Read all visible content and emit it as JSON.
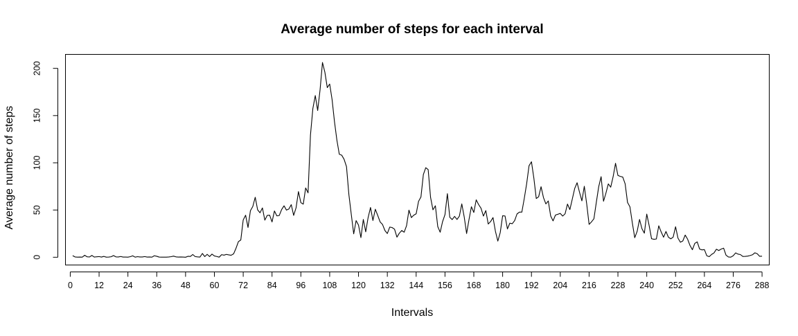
{
  "chart_data": {
    "type": "line",
    "title": "Average number of steps for each interval",
    "xlabel": "Intervals",
    "ylabel": "Average number of steps",
    "xlim": [
      -2,
      291
    ],
    "ylim": [
      -8.2,
      214.8
    ],
    "x_ticks": [
      0,
      12,
      24,
      36,
      48,
      60,
      72,
      84,
      96,
      108,
      120,
      132,
      144,
      156,
      168,
      180,
      192,
      204,
      216,
      228,
      240,
      252,
      264,
      276,
      288
    ],
    "y_ticks": [
      0,
      50,
      100,
      150,
      200
    ],
    "grid": false,
    "legend": "none",
    "series": [
      {
        "color": "#000000",
        "x": [
          1,
          2,
          3,
          4,
          5,
          6,
          7,
          8,
          9,
          10,
          11,
          12,
          13,
          14,
          15,
          16,
          17,
          18,
          19,
          20,
          21,
          22,
          23,
          24,
          25,
          26,
          27,
          28,
          29,
          30,
          31,
          32,
          33,
          34,
          35,
          36,
          37,
          38,
          39,
          40,
          41,
          42,
          43,
          44,
          45,
          46,
          47,
          48,
          49,
          50,
          51,
          52,
          53,
          54,
          55,
          56,
          57,
          58,
          59,
          60,
          61,
          62,
          63,
          64,
          65,
          66,
          67,
          68,
          69,
          70,
          71,
          72,
          73,
          74,
          75,
          76,
          77,
          78,
          79,
          80,
          81,
          82,
          83,
          84,
          85,
          86,
          87,
          88,
          89,
          90,
          91,
          92,
          93,
          94,
          95,
          96,
          97,
          98,
          99,
          100,
          101,
          102,
          103,
          104,
          105,
          106,
          107,
          108,
          109,
          110,
          111,
          112,
          113,
          114,
          115,
          116,
          117,
          118,
          119,
          120,
          121,
          122,
          123,
          124,
          125,
          126,
          127,
          128,
          129,
          130,
          131,
          132,
          133,
          134,
          135,
          136,
          137,
          138,
          139,
          140,
          141,
          142,
          143,
          144,
          145,
          146,
          147,
          148,
          149,
          150,
          151,
          152,
          153,
          154,
          155,
          156,
          157,
          158,
          159,
          160,
          161,
          162,
          163,
          164,
          165,
          166,
          167,
          168,
          169,
          170,
          171,
          172,
          173,
          174,
          175,
          176,
          177,
          178,
          179,
          180,
          181,
          182,
          183,
          184,
          185,
          186,
          187,
          188,
          189,
          190,
          191,
          192,
          193,
          194,
          195,
          196,
          197,
          198,
          199,
          200,
          201,
          202,
          203,
          204,
          205,
          206,
          207,
          208,
          209,
          210,
          211,
          212,
          213,
          214,
          215,
          216,
          217,
          218,
          219,
          220,
          221,
          222,
          223,
          224,
          225,
          226,
          227,
          228,
          229,
          230,
          231,
          232,
          233,
          234,
          235,
          236,
          237,
          238,
          239,
          240,
          241,
          242,
          243,
          244,
          245,
          246,
          247,
          248,
          249,
          250,
          251,
          252,
          253,
          254,
          255,
          256,
          257,
          258,
          259,
          260,
          261,
          262,
          263,
          264,
          265,
          266,
          267,
          268,
          269,
          270,
          271,
          272,
          273,
          274,
          275,
          276,
          277,
          278,
          279,
          280,
          281,
          282,
          283,
          284,
          285,
          286,
          287,
          288
        ],
        "y": [
          1.7,
          0.3,
          0.1,
          0.2,
          0.1,
          2.1,
          0.5,
          0.3,
          1.9,
          0.2,
          0.5,
          0.7,
          0.2,
          0.9,
          0.1,
          0.2,
          0.5,
          1.8,
          0.4,
          0.3,
          0.8,
          0.2,
          0.2,
          0.1,
          0.6,
          1.5,
          0.1,
          0.6,
          0.3,
          0.3,
          0.7,
          0.2,
          0.3,
          0.1,
          1.6,
          1.0,
          0.2,
          0.1,
          0.1,
          0.1,
          0.3,
          0.6,
          1.2,
          0.4,
          0.2,
          0.3,
          0.2,
          0.0,
          1.0,
          0.8,
          2.9,
          0.7,
          0.4,
          0.2,
          4.0,
          0.7,
          3.1,
          0.7,
          3.3,
          1.4,
          0.8,
          0.1,
          2.7,
          2.2,
          3.0,
          2.5,
          2.1,
          3.6,
          9.5,
          16.5,
          18.3,
          39.5,
          44.5,
          31.5,
          49.3,
          53.8,
          63.5,
          50.2,
          47.1,
          52.2,
          39.3,
          44.3,
          44.6,
          37.4,
          49.0,
          43.8,
          44.2,
          50.5,
          54.5,
          49.9,
          51.0,
          55.7,
          44.3,
          52.3,
          69.5,
          57.8,
          56.2,
          73.4,
          68.2,
          129.4,
          157.5,
          171.2,
          155.4,
          177.3,
          206.2,
          195.9,
          179.6,
          183.4,
          167.0,
          143.5,
          124.0,
          109.1,
          108.1,
          103.7,
          95.9,
          66.2,
          45.2,
          24.8,
          38.8,
          34.1,
          20.8,
          40.0,
          26.9,
          42.0,
          52.7,
          38.9,
          50.8,
          44.3,
          37.4,
          34.7,
          28.3,
          25.1,
          31.9,
          31.4,
          29.7,
          21.3,
          25.5,
          28.3,
          26.5,
          33.4,
          49.9,
          42.0,
          44.5,
          46.0,
          59.2,
          63.9,
          87.6,
          94.8,
          92.8,
          63.4,
          50.2,
          54.5,
          32.4,
          26.5,
          37.7,
          45.1,
          67.3,
          42.3,
          39.9,
          43.3,
          40.0,
          43.6,
          56.5,
          42.8,
          25.1,
          39.9,
          53.5,
          47.4,
          60.8,
          55.8,
          51.9,
          43.6,
          49.4,
          35.2,
          37.8,
          42.0,
          27.5,
          17.1,
          26.1,
          43.9,
          43.7,
          30.0,
          36.1,
          35.5,
          38.8,
          45.9,
          47.8,
          47.8,
          62.1,
          77.8,
          96.9,
          101.1,
          83.8,
          62.2,
          64.1,
          74.7,
          63.2,
          56.5,
          59.6,
          43.7,
          38.5,
          44.7,
          45.5,
          46.4,
          43.6,
          46.0,
          56.3,
          50.5,
          61.6,
          72.8,
          78.9,
          68.9,
          59.7,
          75.1,
          56.5,
          34.8,
          37.5,
          40.7,
          58.0,
          74.7,
          85.3,
          59.3,
          67.8,
          77.7,
          74.2,
          85.3,
          99.5,
          86.6,
          85.6,
          84.9,
          77.8,
          58.0,
          53.4,
          36.3,
          20.7,
          27.4,
          40.0,
          30.2,
          25.5,
          45.7,
          33.5,
          19.6,
          19.0,
          19.3,
          33.3,
          26.8,
          21.2,
          27.3,
          21.3,
          19.5,
          21.3,
          32.3,
          20.2,
          15.9,
          17.2,
          23.5,
          19.2,
          12.5,
          8.0,
          14.7,
          16.3,
          8.7,
          7.8,
          8.1,
          1.6,
          0.6,
          3.0,
          4.6,
          8.5,
          7.1,
          8.7,
          9.6,
          2.2,
          0.3,
          0.1,
          1.6,
          4.6,
          3.3,
          2.8,
          0.8,
          0.9,
          1.2,
          1.8,
          2.6,
          4.7,
          3.7,
          1.0,
          1.1
        ]
      }
    ]
  }
}
